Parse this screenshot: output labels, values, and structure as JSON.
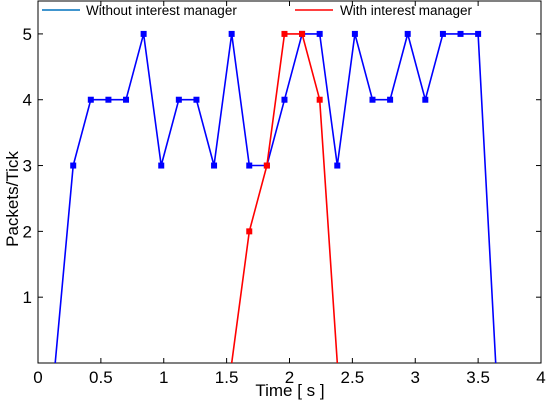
{
  "chart_data": {
    "type": "line",
    "title": "",
    "xlabel": "Time [ s ]",
    "ylabel": "Packets/Tick",
    "xlim": [
      0,
      4
    ],
    "ylim": [
      0,
      5.5
    ],
    "xticks": [
      0,
      0.5,
      1,
      1.5,
      2,
      2.5,
      3,
      3.5,
      4
    ],
    "xtick_labels": [
      "0",
      "0.5",
      "1",
      "1.5",
      "2",
      "2.5",
      "3",
      "3.5",
      "4"
    ],
    "yticks": [
      1,
      2,
      3,
      4,
      5
    ],
    "ytick_labels": [
      "1",
      "2",
      "3",
      "4",
      "5"
    ],
    "grid": false,
    "legend_position": "top",
    "series": [
      {
        "name": "Without interest manager",
        "color": "#0000ff",
        "legend_color": "#0072bd",
        "marker": "square",
        "x": [
          0.137,
          0.28,
          0.42,
          0.56,
          0.7,
          0.84,
          0.98,
          1.12,
          1.26,
          1.4,
          1.54,
          1.68,
          1.82,
          1.96,
          2.1,
          2.24,
          2.38,
          2.52,
          2.66,
          2.8,
          2.94,
          3.08,
          3.22,
          3.36,
          3.5,
          3.64
        ],
        "y": [
          0,
          3,
          4,
          4,
          4,
          5,
          3,
          4,
          4,
          3,
          5,
          3,
          3,
          4,
          5,
          5,
          3,
          5,
          4,
          4,
          5,
          4,
          5,
          5,
          5,
          0
        ],
        "markers_on": [
          false,
          true,
          true,
          true,
          true,
          true,
          true,
          true,
          true,
          true,
          true,
          true,
          true,
          true,
          true,
          true,
          true,
          true,
          true,
          true,
          true,
          true,
          true,
          true,
          true,
          false
        ]
      },
      {
        "name": "With interest manager",
        "color": "#ff0000",
        "legend_color": "#ff0000",
        "marker": "square",
        "x": [
          1.54,
          1.68,
          1.82,
          1.96,
          2.1,
          2.24,
          2.38
        ],
        "y": [
          0,
          2,
          3,
          5,
          5,
          4,
          0
        ],
        "markers_on": [
          false,
          true,
          true,
          true,
          true,
          true,
          false
        ]
      }
    ]
  }
}
